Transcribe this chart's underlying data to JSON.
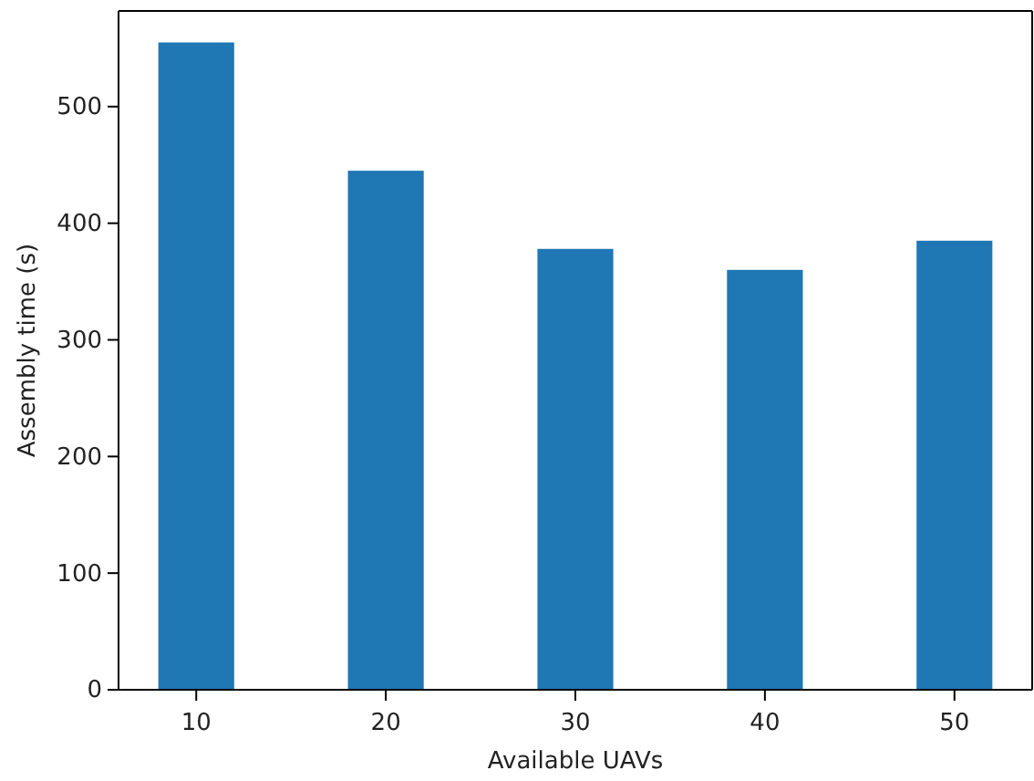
{
  "chart_data": {
    "type": "bar",
    "xlabel": "Available UAVs",
    "ylabel": "Assembly time (s)",
    "categories": [
      "10",
      "20",
      "30",
      "40",
      "50"
    ],
    "values": [
      555,
      445,
      378,
      360,
      385
    ],
    "color": "#1f77b4",
    "ylim": [
      0,
      582
    ],
    "yticks": [
      0,
      100,
      200,
      300,
      400,
      500
    ]
  }
}
